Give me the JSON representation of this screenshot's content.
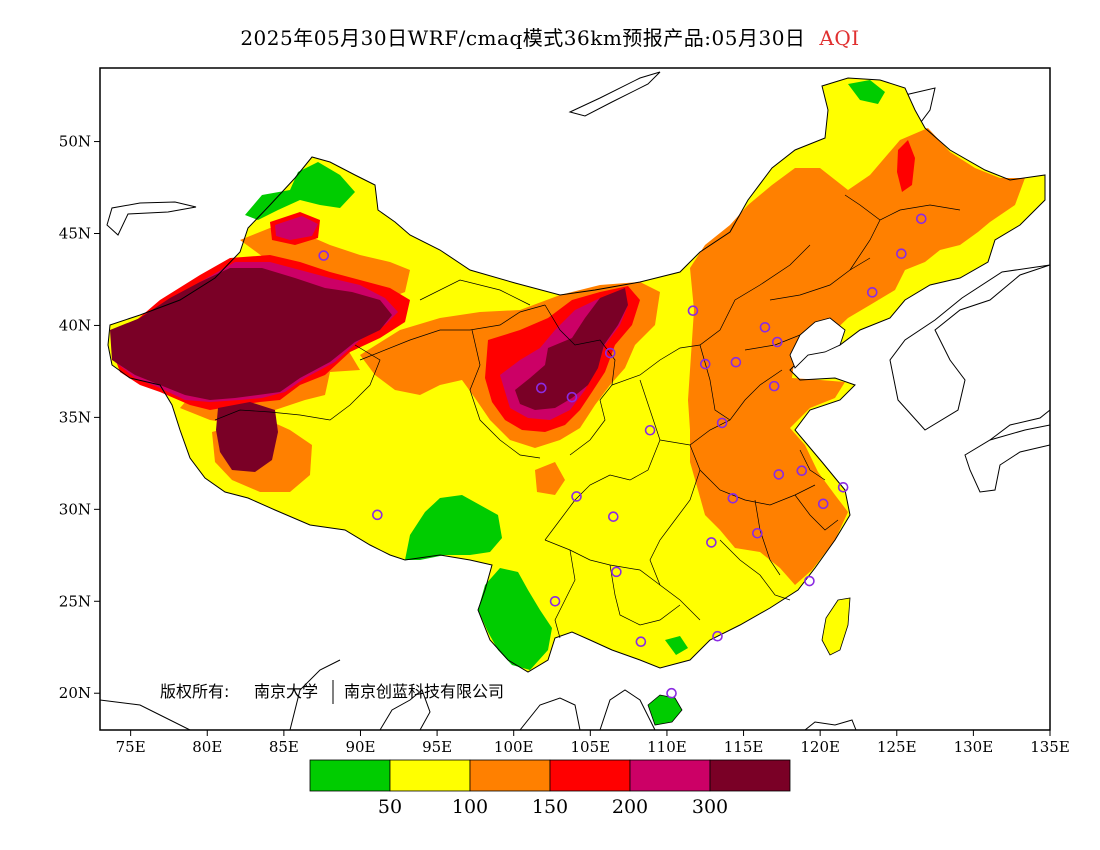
{
  "title": {
    "main": "2025年05月30日WRF/cmaq模式36km预报产品:05月30日",
    "variable": "AQI"
  },
  "axes": {
    "lon_ticks": [
      "75E",
      "80E",
      "85E",
      "90E",
      "95E",
      "100E",
      "105E",
      "110E",
      "115E",
      "120E",
      "125E",
      "130E",
      "135E"
    ],
    "lat_ticks": [
      "20N",
      "25N",
      "30N",
      "35N",
      "40N",
      "45N",
      "50N"
    ],
    "lon_range": [
      73,
      135
    ],
    "lat_range": [
      18,
      54
    ]
  },
  "copyright": {
    "label": "版权所有:",
    "org1": "南京大学",
    "org2": "南京创蓝科技有限公司"
  },
  "legend": {
    "colors": [
      "#00cc00",
      "#ffff00",
      "#ff8000",
      "#ff0000",
      "#cc0066",
      "#7a0026"
    ],
    "labels": [
      "50",
      "100",
      "150",
      "200",
      "300"
    ]
  },
  "stations": [
    {
      "lon": 87.6,
      "lat": 43.8
    },
    {
      "lon": 91.1,
      "lat": 29.7
    },
    {
      "lon": 101.8,
      "lat": 36.6
    },
    {
      "lon": 103.8,
      "lat": 36.1
    },
    {
      "lon": 106.3,
      "lat": 38.5
    },
    {
      "lon": 111.7,
      "lat": 40.8
    },
    {
      "lon": 112.5,
      "lat": 37.9
    },
    {
      "lon": 114.5,
      "lat": 38.0
    },
    {
      "lon": 116.4,
      "lat": 39.9
    },
    {
      "lon": 117.2,
      "lat": 39.1
    },
    {
      "lon": 117.0,
      "lat": 36.7
    },
    {
      "lon": 113.6,
      "lat": 34.7
    },
    {
      "lon": 108.9,
      "lat": 34.3
    },
    {
      "lon": 104.1,
      "lat": 30.7
    },
    {
      "lon": 106.5,
      "lat": 29.6
    },
    {
      "lon": 114.3,
      "lat": 30.6
    },
    {
      "lon": 117.3,
      "lat": 31.9
    },
    {
      "lon": 118.8,
      "lat": 32.1
    },
    {
      "lon": 120.2,
      "lat": 30.3
    },
    {
      "lon": 121.5,
      "lat": 31.2
    },
    {
      "lon": 115.9,
      "lat": 28.7
    },
    {
      "lon": 112.9,
      "lat": 28.2
    },
    {
      "lon": 106.7,
      "lat": 26.6
    },
    {
      "lon": 102.7,
      "lat": 25.0
    },
    {
      "lon": 108.3,
      "lat": 22.8
    },
    {
      "lon": 113.3,
      "lat": 23.1
    },
    {
      "lon": 119.3,
      "lat": 26.1
    },
    {
      "lon": 110.3,
      "lat": 20.0
    },
    {
      "lon": 123.4,
      "lat": 41.8
    },
    {
      "lon": 125.3,
      "lat": 43.9
    },
    {
      "lon": 126.6,
      "lat": 45.8
    }
  ]
}
